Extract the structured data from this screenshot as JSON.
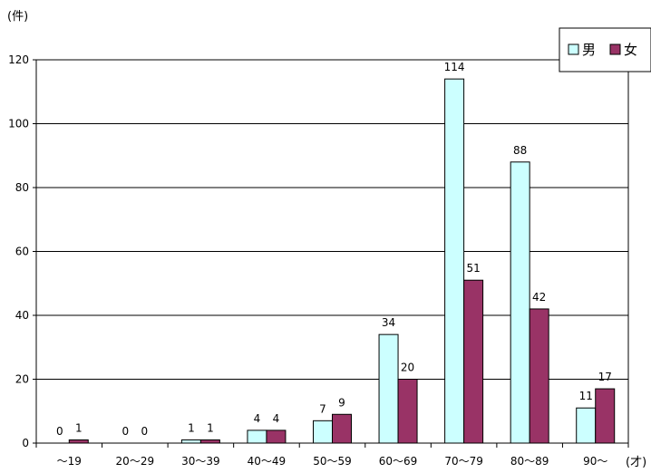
{
  "chart_data": {
    "type": "bar",
    "y_unit": "(件)",
    "x_unit": "(才)",
    "categories": [
      "～19",
      "20～29",
      "30～39",
      "40～49",
      "50～59",
      "60～69",
      "70～79",
      "80～89",
      "90～"
    ],
    "series": [
      {
        "name": "男",
        "values": [
          0,
          0,
          1,
          4,
          7,
          34,
          114,
          88,
          11
        ],
        "color": "#ccffff"
      },
      {
        "name": "女",
        "values": [
          1,
          0,
          1,
          4,
          9,
          20,
          51,
          42,
          17
        ],
        "color": "#993366"
      }
    ],
    "ylim": [
      0,
      120
    ],
    "yticks": [
      0,
      20,
      40,
      60,
      80,
      100,
      120
    ],
    "grid": true,
    "legend": "top-right",
    "data_labels": true
  }
}
